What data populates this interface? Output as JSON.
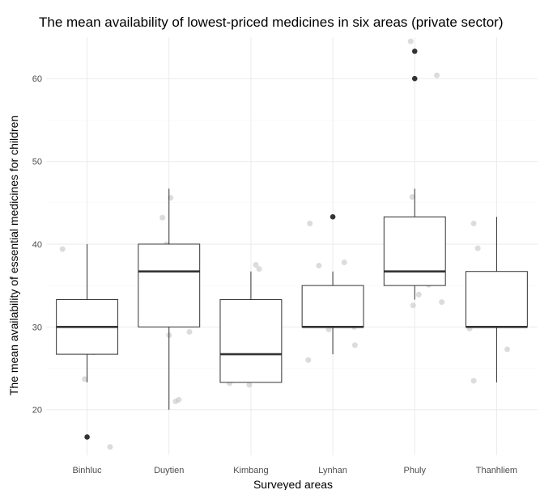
{
  "chart_data": {
    "type": "boxplot",
    "title": "The mean availability of lowest-priced medicines in six areas (private sector)",
    "xlabel": "Surveyed areas",
    "ylabel": "The mean availability of essential medicines for children",
    "ylim": [
      14.5,
      65
    ],
    "y_ticks": [
      20,
      30,
      40,
      50,
      60
    ],
    "grid": true,
    "categories": [
      "Binhluc",
      "Duytien",
      "Kimbang",
      "Lynhan",
      "Phuly",
      "Thanhliem"
    ],
    "boxes": [
      {
        "category": "Binhluc",
        "lower_whisker": 23.3,
        "q1": 26.7,
        "median": 30.0,
        "q3": 33.3,
        "upper_whisker": 40.0,
        "outliers": [
          16.7
        ]
      },
      {
        "category": "Duytien",
        "lower_whisker": 20.0,
        "q1": 30.0,
        "median": 36.7,
        "q3": 40.0,
        "upper_whisker": 46.7,
        "outliers": []
      },
      {
        "category": "Kimbang",
        "lower_whisker": 23.3,
        "q1": 23.3,
        "median": 26.7,
        "q3": 33.3,
        "upper_whisker": 36.7,
        "outliers": []
      },
      {
        "category": "Lynhan",
        "lower_whisker": 26.7,
        "q1": 30.0,
        "median": 30.0,
        "q3": 35.0,
        "upper_whisker": 36.7,
        "outliers": [
          43.3
        ]
      },
      {
        "category": "Phuly",
        "lower_whisker": 33.3,
        "q1": 35.0,
        "median": 36.7,
        "q3": 43.3,
        "upper_whisker": 46.7,
        "outliers": [
          60.0,
          63.3
        ]
      },
      {
        "category": "Thanhliem",
        "lower_whisker": 23.3,
        "q1": 30.0,
        "median": 30.0,
        "q3": 36.7,
        "upper_whisker": 43.3,
        "outliers": []
      }
    ],
    "jitter_points": [
      {
        "category": "Binhluc",
        "offset": -0.3,
        "y": 39.4
      },
      {
        "category": "Binhluc",
        "offset": -0.05,
        "y": 29.7
      },
      {
        "category": "Binhluc",
        "offset": -0.05,
        "y": 27.2
      },
      {
        "category": "Binhluc",
        "offset": 0.07,
        "y": 30.3
      },
      {
        "category": "Binhluc",
        "offset": 0.12,
        "y": 32.1
      },
      {
        "category": "Binhluc",
        "offset": 0.16,
        "y": 32.4
      },
      {
        "category": "Binhluc",
        "offset": 0.22,
        "y": 32.7
      },
      {
        "category": "Binhluc",
        "offset": 0.08,
        "y": 26.9
      },
      {
        "category": "Binhluc",
        "offset": -0.03,
        "y": 23.7
      },
      {
        "category": "Binhluc",
        "offset": 0.28,
        "y": 15.5
      },
      {
        "category": "Duytien",
        "offset": -0.3,
        "y": 33.6
      },
      {
        "category": "Duytien",
        "offset": -0.26,
        "y": 38.0
      },
      {
        "category": "Duytien",
        "offset": -0.08,
        "y": 43.2
      },
      {
        "category": "Duytien",
        "offset": -0.03,
        "y": 40.0
      },
      {
        "category": "Duytien",
        "offset": 0.0,
        "y": 29.0
      },
      {
        "category": "Duytien",
        "offset": 0.02,
        "y": 45.6
      },
      {
        "category": "Duytien",
        "offset": 0.08,
        "y": 21.0
      },
      {
        "category": "Duytien",
        "offset": 0.12,
        "y": 21.2
      },
      {
        "category": "Duytien",
        "offset": 0.15,
        "y": 37.9
      },
      {
        "category": "Duytien",
        "offset": 0.19,
        "y": 39.2
      },
      {
        "category": "Duytien",
        "offset": 0.25,
        "y": 29.4
      },
      {
        "category": "Kimbang",
        "offset": -0.3,
        "y": 25.7
      },
      {
        "category": "Kimbang",
        "offset": -0.26,
        "y": 23.2
      },
      {
        "category": "Kimbang",
        "offset": -0.06,
        "y": 25.6
      },
      {
        "category": "Kimbang",
        "offset": -0.02,
        "y": 23.0
      },
      {
        "category": "Kimbang",
        "offset": 0.02,
        "y": 26.6
      },
      {
        "category": "Kimbang",
        "offset": 0.06,
        "y": 37.5
      },
      {
        "category": "Kimbang",
        "offset": 0.1,
        "y": 37.0
      },
      {
        "category": "Kimbang",
        "offset": 0.16,
        "y": 32.0
      },
      {
        "category": "Kimbang",
        "offset": 0.22,
        "y": 30.1
      },
      {
        "category": "Kimbang",
        "offset": 0.27,
        "y": 23.7
      },
      {
        "category": "Lynhan",
        "offset": -0.3,
        "y": 26.0
      },
      {
        "category": "Lynhan",
        "offset": -0.28,
        "y": 42.5
      },
      {
        "category": "Lynhan",
        "offset": -0.17,
        "y": 37.4
      },
      {
        "category": "Lynhan",
        "offset": -0.12,
        "y": 32.4
      },
      {
        "category": "Lynhan",
        "offset": -0.15,
        "y": 31.3
      },
      {
        "category": "Lynhan",
        "offset": -0.05,
        "y": 29.7
      },
      {
        "category": "Lynhan",
        "offset": 0.0,
        "y": 34.5
      },
      {
        "category": "Lynhan",
        "offset": 0.09,
        "y": 30.9
      },
      {
        "category": "Lynhan",
        "offset": 0.14,
        "y": 37.8
      },
      {
        "category": "Lynhan",
        "offset": 0.26,
        "y": 30.0
      },
      {
        "category": "Lynhan",
        "offset": 0.27,
        "y": 27.8
      },
      {
        "category": "Phuly",
        "offset": -0.05,
        "y": 64.5
      },
      {
        "category": "Phuly",
        "offset": 0.27,
        "y": 60.4
      },
      {
        "category": "Phuly",
        "offset": -0.12,
        "y": 36.3
      },
      {
        "category": "Phuly",
        "offset": -0.03,
        "y": 45.7
      },
      {
        "category": "Phuly",
        "offset": -0.05,
        "y": 40.7
      },
      {
        "category": "Phuly",
        "offset": 0.02,
        "y": 39.9
      },
      {
        "category": "Phuly",
        "offset": 0.05,
        "y": 33.9
      },
      {
        "category": "Phuly",
        "offset": -0.02,
        "y": 32.6
      },
      {
        "category": "Phuly",
        "offset": -0.1,
        "y": 36.7
      },
      {
        "category": "Phuly",
        "offset": 0.14,
        "y": 36.3
      },
      {
        "category": "Phuly",
        "offset": 0.1,
        "y": 35.8
      },
      {
        "category": "Phuly",
        "offset": 0.17,
        "y": 35.1
      },
      {
        "category": "Phuly",
        "offset": 0.33,
        "y": 33.0
      },
      {
        "category": "Thanhliem",
        "offset": -0.33,
        "y": 29.8
      },
      {
        "category": "Thanhliem",
        "offset": -0.3,
        "y": 35.9
      },
      {
        "category": "Thanhliem",
        "offset": -0.28,
        "y": 42.5
      },
      {
        "category": "Thanhliem",
        "offset": -0.28,
        "y": 23.5
      },
      {
        "category": "Thanhliem",
        "offset": -0.23,
        "y": 39.5
      },
      {
        "category": "Thanhliem",
        "offset": -0.23,
        "y": 31.0
      },
      {
        "category": "Thanhliem",
        "offset": -0.1,
        "y": 32.9
      },
      {
        "category": "Thanhliem",
        "offset": 0.03,
        "y": 35.9
      },
      {
        "category": "Thanhliem",
        "offset": 0.13,
        "y": 27.3
      },
      {
        "category": "Thanhliem",
        "offset": 0.28,
        "y": 30.8
      },
      {
        "category": "Thanhliem",
        "offset": 0.33,
        "y": 30.3
      }
    ]
  }
}
